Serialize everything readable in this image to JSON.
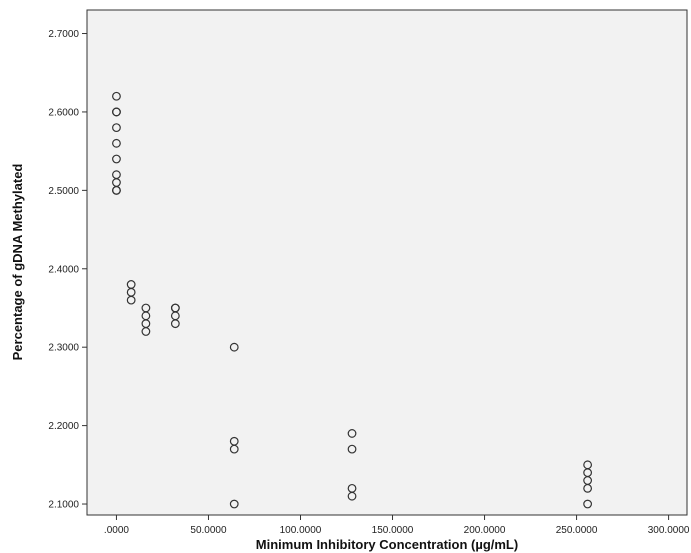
{
  "chart_data": {
    "type": "scatter",
    "title": "",
    "xlabel": "Minimum Inhibitory Concentration (µg/mL)",
    "ylabel": "Percentage of gDNA Methylated",
    "xlim": [
      -16,
      310
    ],
    "ylim": [
      2.086,
      2.73
    ],
    "x_ticks": [
      0,
      50,
      100,
      150,
      200,
      250,
      300
    ],
    "x_tick_labels": [
      ".0000",
      "50.0000",
      "100.0000",
      "150.0000",
      "200.0000",
      "250.0000",
      "300.0000"
    ],
    "y_ticks": [
      2.1,
      2.2,
      2.3,
      2.4,
      2.5,
      2.6,
      2.7
    ],
    "y_tick_labels": [
      "2.1000",
      "2.2000",
      "2.3000",
      "2.4000",
      "2.5000",
      "2.6000",
      "2.7000"
    ],
    "grid": false,
    "marker": "open-circle",
    "points": [
      {
        "x": 0,
        "y": 2.62
      },
      {
        "x": 0,
        "y": 2.6
      },
      {
        "x": 0,
        "y": 2.6
      },
      {
        "x": 0,
        "y": 2.58
      },
      {
        "x": 0,
        "y": 2.56
      },
      {
        "x": 0,
        "y": 2.54
      },
      {
        "x": 0,
        "y": 2.52
      },
      {
        "x": 0,
        "y": 2.51
      },
      {
        "x": 0,
        "y": 2.5
      },
      {
        "x": 0,
        "y": 2.5
      },
      {
        "x": 8,
        "y": 2.38
      },
      {
        "x": 8,
        "y": 2.37
      },
      {
        "x": 8,
        "y": 2.36
      },
      {
        "x": 16,
        "y": 2.35
      },
      {
        "x": 16,
        "y": 2.34
      },
      {
        "x": 16,
        "y": 2.33
      },
      {
        "x": 16,
        "y": 2.32
      },
      {
        "x": 32,
        "y": 2.35
      },
      {
        "x": 32,
        "y": 2.35
      },
      {
        "x": 32,
        "y": 2.34
      },
      {
        "x": 32,
        "y": 2.33
      },
      {
        "x": 64,
        "y": 2.3
      },
      {
        "x": 64,
        "y": 2.18
      },
      {
        "x": 64,
        "y": 2.17
      },
      {
        "x": 64,
        "y": 2.1
      },
      {
        "x": 128,
        "y": 2.19
      },
      {
        "x": 128,
        "y": 2.17
      },
      {
        "x": 128,
        "y": 2.12
      },
      {
        "x": 128,
        "y": 2.11
      },
      {
        "x": 256,
        "y": 2.15
      },
      {
        "x": 256,
        "y": 2.14
      },
      {
        "x": 256,
        "y": 2.13
      },
      {
        "x": 256,
        "y": 2.12
      },
      {
        "x": 256,
        "y": 2.1
      }
    ],
    "colors": {
      "plot_background": "#f2f2f2",
      "frame": "#333333",
      "marker_stroke": "#333333"
    }
  }
}
